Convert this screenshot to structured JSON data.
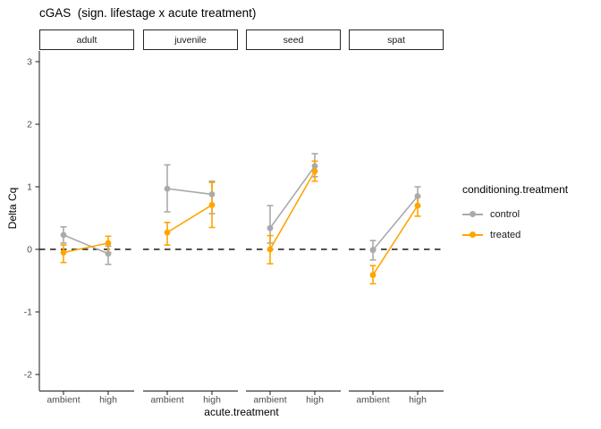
{
  "title": "cGAS  (sign. lifestage x acute treatment)",
  "legend": {
    "title": "conditioning.treatment",
    "entries": [
      {
        "label": "control",
        "color": "#AAAAAA"
      },
      {
        "label": "treated",
        "color": "#FFA500"
      }
    ]
  },
  "chart_data": {
    "type": "line",
    "title": "cGAS  (sign. lifestage x acute treatment)",
    "xlabel": "acute.treatment",
    "ylabel": "Delta Cq",
    "ylim": [
      -2.26,
      3.17
    ],
    "y_ticks": [
      3,
      2,
      1,
      0,
      -1,
      -2
    ],
    "categories": [
      "ambient",
      "high"
    ],
    "reference_line_y": 0,
    "grid": false,
    "legend_title": "conditioning.treatment",
    "legend_position": "right",
    "axis_text_color": "#4D4D4D",
    "axis_line_color": "#1a1a1a",
    "facets": [
      {
        "label": "adult",
        "series": [
          {
            "name": "control",
            "values": [
              0.23,
              -0.07
            ],
            "ci_low": [
              0.1,
              -0.24
            ],
            "ci_high": [
              0.36,
              0.05
            ]
          },
          {
            "name": "treated",
            "values": [
              -0.05,
              0.1
            ],
            "ci_low": [
              -0.21,
              -0.05
            ],
            "ci_high": [
              0.07,
              0.21
            ]
          }
        ]
      },
      {
        "label": "juvenile",
        "series": [
          {
            "name": "control",
            "values": [
              0.97,
              0.88
            ],
            "ci_low": [
              0.6,
              0.57
            ],
            "ci_high": [
              1.35,
              1.09
            ]
          },
          {
            "name": "treated",
            "values": [
              0.27,
              0.71
            ],
            "ci_low": [
              0.07,
              0.35
            ],
            "ci_high": [
              0.43,
              1.07
            ]
          }
        ]
      },
      {
        "label": "seed",
        "series": [
          {
            "name": "control",
            "values": [
              0.34,
              1.33
            ],
            "ci_low": [
              0.1,
              1.16
            ],
            "ci_high": [
              0.7,
              1.53
            ]
          },
          {
            "name": "treated",
            "values": [
              0.0,
              1.25
            ],
            "ci_low": [
              -0.23,
              1.09
            ],
            "ci_high": [
              0.22,
              1.41
            ]
          }
        ]
      },
      {
        "label": "spat",
        "series": [
          {
            "name": "control",
            "values": [
              -0.01,
              0.85
            ],
            "ci_low": [
              -0.17,
              0.69
            ],
            "ci_high": [
              0.14,
              1.0
            ]
          },
          {
            "name": "treated",
            "values": [
              -0.41,
              0.7
            ],
            "ci_low": [
              -0.55,
              0.53
            ],
            "ci_high": [
              -0.26,
              0.84
            ]
          }
        ]
      }
    ]
  }
}
